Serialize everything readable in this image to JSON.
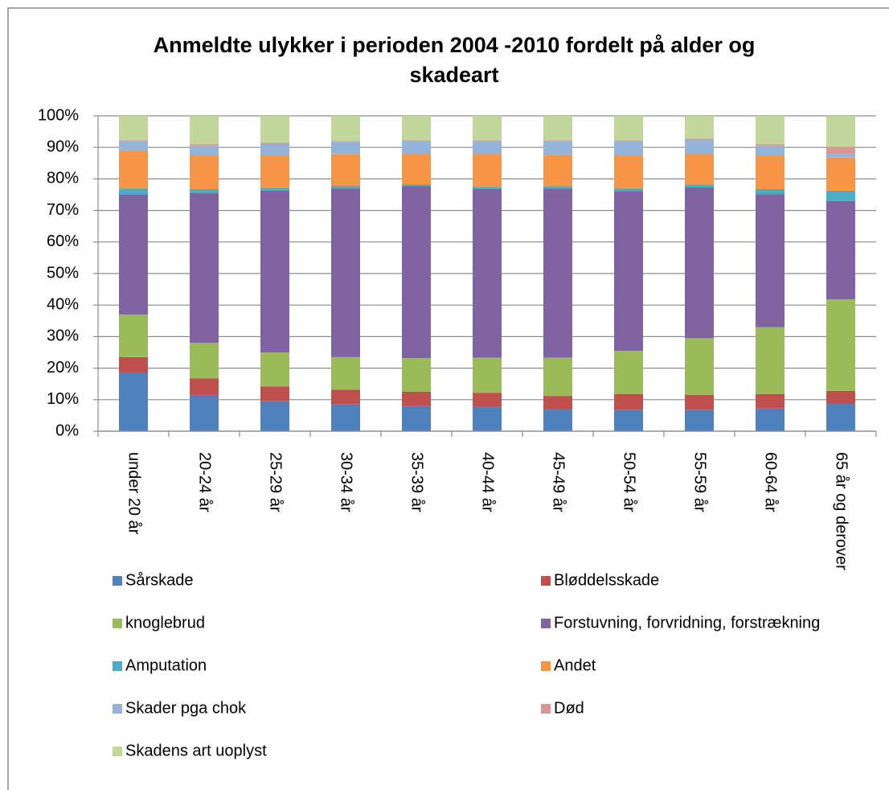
{
  "chart_data": {
    "type": "stacked_bar",
    "title": "Anmeldte ulykker i perioden 2004 -2010 fordelt på alder og skadeart",
    "categories": [
      "under 20 år",
      "20-24 år",
      "25-29 år",
      "30-34 år",
      "35-39 år",
      "40-44 år",
      "45-49 år",
      "50-54 år",
      "55-59 år",
      "60-64 år",
      "65 år og derover"
    ],
    "series": [
      {
        "name": "Sårskade",
        "color": "#4f81bd",
        "values": [
          18.5,
          11.5,
          9.5,
          8.5,
          8,
          7.8,
          7,
          6.8,
          6.8,
          7.2,
          8.8
        ]
      },
      {
        "name": "Bløddelsskade",
        "color": "#c0504d",
        "values": [
          5,
          5.3,
          4.7,
          4.7,
          4.5,
          4.4,
          4.2,
          5,
          4.7,
          4.6,
          4
        ]
      },
      {
        "name": "knoglebrud",
        "color": "#9bbb59",
        "values": [
          13.5,
          11.2,
          10.8,
          10.3,
          10.7,
          11.1,
          12.1,
          13.7,
          18,
          21.2,
          29
        ]
      },
      {
        "name": "Forstuvning, forvridning, forstrækning",
        "color": "#8064a2",
        "values": [
          38,
          47.5,
          51.3,
          53.5,
          54.5,
          53.5,
          53.7,
          50.7,
          47.8,
          42.2,
          31.2
        ]
      },
      {
        "name": "Amputation",
        "color": "#4bacc6",
        "values": [
          2,
          1.3,
          0.9,
          0.8,
          0.6,
          0.7,
          0.7,
          0.8,
          0.9,
          1.6,
          3.3
        ]
      },
      {
        "name": "Andet",
        "color": "#f79646",
        "values": [
          12,
          10.7,
          10.3,
          10,
          9.7,
          10.5,
          9.9,
          10.5,
          9.8,
          10.7,
          10.5
        ]
      },
      {
        "name": "Skader pga chok",
        "color": "#95b3d7",
        "values": [
          3,
          3,
          3.7,
          4,
          4,
          4,
          4.4,
          4.5,
          4.5,
          3,
          1.2
        ]
      },
      {
        "name": "Død",
        "color": "#d99694",
        "values": [
          0.3,
          0.5,
          0.3,
          0.2,
          0.2,
          0.2,
          0.3,
          0.2,
          0.3,
          0.5,
          2.2
        ]
      },
      {
        "name": "Skadens art uoplyst",
        "color": "#c3d69b",
        "values": [
          7.7,
          9,
          8.5,
          8,
          7.8,
          7.8,
          7.7,
          7.8,
          7.2,
          9,
          9.8
        ]
      }
    ],
    "ylim": [
      0,
      100
    ],
    "yticks": [
      {
        "value": 0,
        "label": "0%"
      },
      {
        "value": 10,
        "label": "10%"
      },
      {
        "value": 20,
        "label": "20%"
      },
      {
        "value": 30,
        "label": "30%"
      },
      {
        "value": 40,
        "label": "40%"
      },
      {
        "value": 50,
        "label": "50%"
      },
      {
        "value": 60,
        "label": "60%"
      },
      {
        "value": 70,
        "label": "70%"
      },
      {
        "value": 80,
        "label": "80%"
      },
      {
        "value": 90,
        "label": "90%"
      },
      {
        "value": 100,
        "label": "100%"
      }
    ],
    "grid": true,
    "legend": "bottom"
  }
}
